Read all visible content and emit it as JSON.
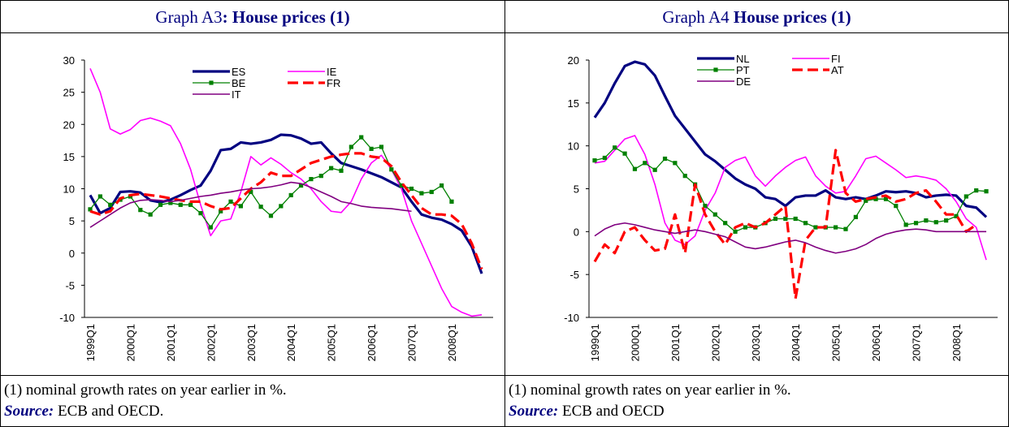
{
  "chart_data": [
    {
      "type": "line",
      "title_prefix": "Graph A3",
      "title": ": House prices (1)",
      "note": "(1) nominal growth rates on year earlier in %.",
      "source_label": "Source:",
      "source": "ECB and OECD.",
      "categories": [
        "1999Q1",
        null,
        null,
        null,
        "2000Q1",
        null,
        null,
        null,
        "2001Q1",
        null,
        null,
        null,
        "2002Q1",
        null,
        null,
        null,
        "2003Q1",
        null,
        null,
        null,
        "2004Q1",
        null,
        null,
        null,
        "2005Q1",
        null,
        null,
        null,
        "2006Q1",
        null,
        null,
        null,
        "2007Q1",
        null,
        null,
        null,
        "2008Q1",
        null,
        null,
        null
      ],
      "ylim": [
        -10,
        30
      ],
      "yticks": [
        -10,
        -5,
        0,
        5,
        10,
        15,
        20,
        25,
        30
      ],
      "legend": "top",
      "series": [
        {
          "name": "ES",
          "color": "#000080",
          "style": "thick",
          "values": [
            9,
            6.2,
            7,
            9.5,
            9.6,
            9.4,
            8.2,
            7.9,
            8.3,
            9,
            9.8,
            10.5,
            12.8,
            16,
            16.2,
            17.2,
            17,
            17.2,
            17.6,
            18.4,
            18.3,
            17.8,
            17,
            17.2,
            15.5,
            14,
            13.5,
            13,
            12.4,
            11.8,
            11,
            10.2,
            8,
            6,
            5.5,
            5.2,
            4.5,
            3.5,
            1,
            -3.2
          ]
        },
        {
          "name": "IE",
          "color": "#ff00ff",
          "style": "thin",
          "values": [
            28.7,
            25,
            19.3,
            18.5,
            19.2,
            20.6,
            21,
            20.5,
            19.8,
            17,
            13,
            7.5,
            2.7,
            5,
            5.3,
            9.5,
            15,
            13.7,
            14.8,
            13.8,
            12.5,
            11.5,
            10,
            8,
            6.5,
            6.3,
            8,
            11.5,
            14,
            15.2,
            13,
            10,
            5,
            1.5,
            -2,
            -5.5,
            -8.3,
            -9.2,
            -9.8,
            -9.6
          ]
        },
        {
          "name": "BE",
          "color": "#008000",
          "style": "marker",
          "values": [
            6.8,
            8.8,
            7.5,
            8.3,
            8.8,
            6.7,
            6,
            7.5,
            7.8,
            7.5,
            7.5,
            6.2,
            4,
            6.5,
            8,
            7.3,
            9.5,
            7.2,
            5.8,
            7.3,
            9,
            10.5,
            11.5,
            12,
            13.2,
            12.8,
            16.5,
            18,
            16.2,
            16.5,
            13,
            10.5,
            10,
            9.3,
            9.5,
            10.5,
            8,
            null,
            null,
            null
          ]
        },
        {
          "name": "FR",
          "color": "#ff0000",
          "style": "dashed",
          "values": [
            6.5,
            6,
            6.5,
            8.5,
            9,
            9.2,
            9,
            8.8,
            8.5,
            8.2,
            8,
            8,
            7.3,
            6.8,
            7,
            8.5,
            10,
            11,
            12.5,
            12,
            12,
            13,
            14,
            14.5,
            15,
            15.3,
            15.5,
            15.5,
            15,
            14.8,
            13.5,
            11,
            9,
            7,
            6,
            6,
            5.8,
            4.5,
            1.5,
            -2.5
          ]
        },
        {
          "name": "IT",
          "color": "#800080",
          "style": "thin",
          "values": [
            4,
            5,
            6,
            7,
            7.8,
            8.2,
            8.3,
            8.2,
            8,
            8.2,
            8.5,
            8.8,
            9,
            9.3,
            9.5,
            9.8,
            10,
            10.1,
            10.3,
            10.6,
            11,
            10.8,
            10.2,
            9.5,
            8.8,
            8,
            7.7,
            7.3,
            7.1,
            7,
            6.9,
            6.7,
            6.5,
            null,
            null,
            null,
            null,
            null,
            null,
            null
          ]
        }
      ]
    },
    {
      "type": "line",
      "title_prefix": "Graph A4",
      "title": "House prices (1)",
      "note": "(1) nominal growth rates on year earlier in %.",
      "source_label": "Source:",
      "source": "ECB and OECD",
      "categories": [
        "1999Q1",
        null,
        null,
        null,
        "2000Q1",
        null,
        null,
        null,
        "2001Q1",
        null,
        null,
        null,
        "2002Q1",
        null,
        null,
        null,
        "2003Q1",
        null,
        null,
        null,
        "2004Q1",
        null,
        null,
        null,
        "2005Q1",
        null,
        null,
        null,
        "2006Q1",
        null,
        null,
        null,
        "2007Q1",
        null,
        null,
        null,
        "2008Q1",
        null,
        null,
        null
      ],
      "ylim": [
        -10,
        20
      ],
      "yticks": [
        -10,
        -5,
        0,
        5,
        10,
        15,
        20
      ],
      "legend": "top",
      "series": [
        {
          "name": "NL",
          "color": "#000080",
          "style": "thick",
          "values": [
            13.3,
            15,
            17.3,
            19.3,
            19.8,
            19.5,
            18.2,
            15.8,
            13.5,
            12,
            10.5,
            9,
            8.2,
            7.2,
            6.2,
            5.5,
            5,
            4,
            3.8,
            3,
            4,
            4.2,
            4.2,
            4.8,
            4,
            3.8,
            4,
            3.8,
            4.2,
            4.7,
            4.6,
            4.7,
            4.5,
            4,
            4.2,
            4.3,
            4.2,
            3,
            2.8,
            1.7
          ]
        },
        {
          "name": "FI",
          "color": "#ff00ff",
          "style": "thin",
          "values": [
            8,
            8.2,
            9.5,
            10.8,
            11.2,
            9,
            5.5,
            1,
            -1,
            -1.5,
            -0.5,
            2.5,
            4.5,
            7.5,
            8.3,
            8.7,
            6.5,
            5.3,
            6.5,
            7.5,
            8.3,
            8.7,
            6.5,
            5.3,
            4.5,
            4.7,
            6.5,
            8.5,
            8.8,
            8,
            7.2,
            6.3,
            6.5,
            6.3,
            6,
            5,
            3.5,
            1.5,
            0.5,
            -3.3
          ]
        },
        {
          "name": "PT",
          "color": "#008000",
          "style": "marker",
          "values": [
            8.3,
            8.6,
            9.8,
            9.1,
            7.3,
            8,
            7.2,
            8.5,
            8,
            6.5,
            5.5,
            3,
            2,
            1,
            0,
            0.5,
            0.5,
            1,
            1.5,
            1.5,
            1.5,
            1,
            0.5,
            0.5,
            0.5,
            0.3,
            1.7,
            3.6,
            3.8,
            3.8,
            3,
            0.8,
            1,
            1.3,
            1.1,
            1.3,
            1.8,
            4.1,
            4.8,
            4.7
          ]
        },
        {
          "name": "AT",
          "color": "#ff0000",
          "style": "dashed",
          "values": [
            -3.5,
            -1.5,
            -2.5,
            0,
            0.5,
            -1,
            -2.2,
            -2,
            2,
            -2.5,
            5.5,
            2,
            0,
            -1.5,
            0.5,
            1,
            0.5,
            1,
            2,
            3,
            -7.8,
            -1,
            0.5,
            0.5,
            9.5,
            4.5,
            3.5,
            3.8,
            4,
            4.2,
            3.5,
            3.8,
            4.5,
            4.8,
            3.5,
            2,
            2,
            0,
            0.8,
            null
          ]
        },
        {
          "name": "DE",
          "color": "#800080",
          "style": "thin",
          "values": [
            -0.5,
            0.3,
            0.8,
            1,
            0.8,
            0.5,
            0.2,
            0,
            -0.2,
            0,
            0.2,
            0,
            -0.3,
            -0.6,
            -1.2,
            -1.8,
            -2,
            -1.8,
            -1.5,
            -1.2,
            -1,
            -1.3,
            -1.8,
            -2.2,
            -2.5,
            -2.3,
            -2,
            -1.5,
            -0.8,
            -0.3,
            0,
            0.2,
            0.3,
            0.2,
            0,
            0,
            0,
            0,
            0,
            0
          ]
        }
      ]
    }
  ]
}
